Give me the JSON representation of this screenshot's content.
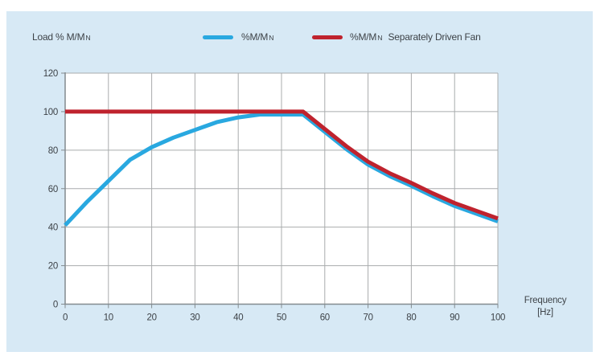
{
  "header": {
    "y_axis_label": {
      "prefix": "Load % M/M",
      "sub": "N"
    }
  },
  "legend": [
    {
      "id": "motor",
      "color": "#29a8e0",
      "label_prefix": "%M/M",
      "label_sub": "N",
      "label_suffix": ""
    },
    {
      "id": "separately-driven-fan",
      "color": "#bf232e",
      "label_prefix": "%M/M",
      "label_sub": "N",
      "label_suffix": "Separately Driven Fan"
    }
  ],
  "x_axis": {
    "title_line1": "Frequency",
    "title_line2": "[Hz]",
    "min": 0,
    "max": 100,
    "ticks": [
      0,
      10,
      20,
      30,
      40,
      50,
      60,
      70,
      80,
      90,
      100
    ]
  },
  "y_axis": {
    "min": 0,
    "max": 120,
    "ticks": [
      0,
      20,
      40,
      60,
      80,
      100,
      120
    ]
  },
  "chart_data": {
    "type": "line",
    "title": "",
    "xlabel": "Frequency [Hz]",
    "ylabel": "Load % M/Mn",
    "xlim": [
      0,
      100
    ],
    "ylim": [
      0,
      120
    ],
    "grid": true,
    "legend_position": "top",
    "series": [
      {
        "name": "%M/Mn",
        "color": "#29a8e0",
        "points": [
          [
            0,
            41
          ],
          [
            5,
            53
          ],
          [
            10,
            64
          ],
          [
            15,
            75
          ],
          [
            20,
            81.5
          ],
          [
            25,
            86.5
          ],
          [
            30,
            90.5
          ],
          [
            35,
            94.5
          ],
          [
            40,
            97
          ],
          [
            45,
            98.5
          ],
          [
            50,
            98.5
          ],
          [
            55,
            98.5
          ],
          [
            60,
            89.5
          ],
          [
            65,
            80.5
          ],
          [
            70,
            72.5
          ],
          [
            75,
            66.5
          ],
          [
            80,
            61.5
          ],
          [
            85,
            56
          ],
          [
            90,
            51
          ],
          [
            95,
            47
          ],
          [
            100,
            43
          ]
        ]
      },
      {
        "name": "%M/Mn Separately Driven Fan",
        "color": "#bf232e",
        "points": [
          [
            0,
            100
          ],
          [
            55,
            100
          ],
          [
            60,
            91
          ],
          [
            65,
            82
          ],
          [
            70,
            74
          ],
          [
            75,
            68
          ],
          [
            80,
            63
          ],
          [
            85,
            57.5
          ],
          [
            90,
            52.5
          ],
          [
            95,
            48.5
          ],
          [
            100,
            44.5
          ]
        ]
      }
    ]
  },
  "style": {
    "card_bg": "#d7e9f5",
    "plot_bg": "#ffffff",
    "grid_color": "#a9acad",
    "axis_color": "#848b8f",
    "text_color": "#3d4247"
  }
}
